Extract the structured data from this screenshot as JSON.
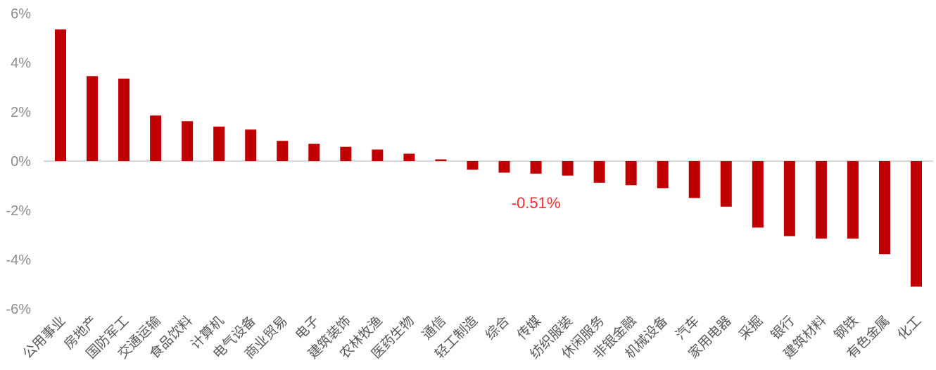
{
  "chart_data": {
    "type": "bar",
    "categories": [
      "公用事业",
      "房地产",
      "国防军工",
      "交通运输",
      "食品饮料",
      "计算机",
      "电气设备",
      "商业贸易",
      "电子",
      "建筑装饰",
      "农林牧渔",
      "医药生物",
      "通信",
      "轻工制造",
      "综合",
      "传媒",
      "纺织服装",
      "休闲服务",
      "非银金融",
      "机械设备",
      "汽车",
      "家用电器",
      "采掘",
      "银行",
      "建筑材料",
      "钢铁",
      "有色金属",
      "化工"
    ],
    "values": [
      5.35,
      3.45,
      3.35,
      1.85,
      1.62,
      1.4,
      1.28,
      0.82,
      0.7,
      0.58,
      0.47,
      0.3,
      0.07,
      -0.35,
      -0.47,
      -0.51,
      -0.59,
      -0.88,
      -0.98,
      -1.1,
      -1.5,
      -1.85,
      -2.7,
      -3.05,
      -3.15,
      -3.15,
      -3.78,
      -5.1
    ],
    "y_ticks": [
      "6%",
      "4%",
      "2%",
      "0%",
      "-2%",
      "-4%",
      "-6%"
    ],
    "ylim": [
      -6,
      6
    ],
    "grid": false,
    "bar_color": "#c00000",
    "axis_color": "#d9d9d9",
    "annotations": [
      {
        "text": "-0.51%",
        "category": "传媒",
        "color": "#ff2a2a"
      }
    ]
  }
}
